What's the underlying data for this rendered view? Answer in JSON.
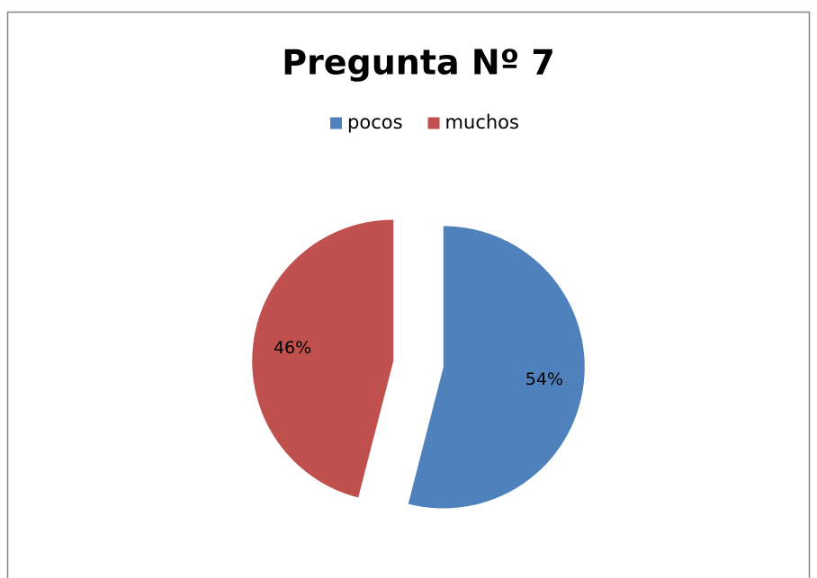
{
  "chart_data": {
    "type": "pie",
    "title": "Pregunta Nº 7",
    "categories": [
      "pocos",
      "muchos"
    ],
    "values": [
      54,
      46
    ],
    "value_labels": [
      "54%",
      "46%"
    ],
    "colors": [
      "#4f81bd",
      "#c0504d"
    ],
    "legend": "top"
  }
}
